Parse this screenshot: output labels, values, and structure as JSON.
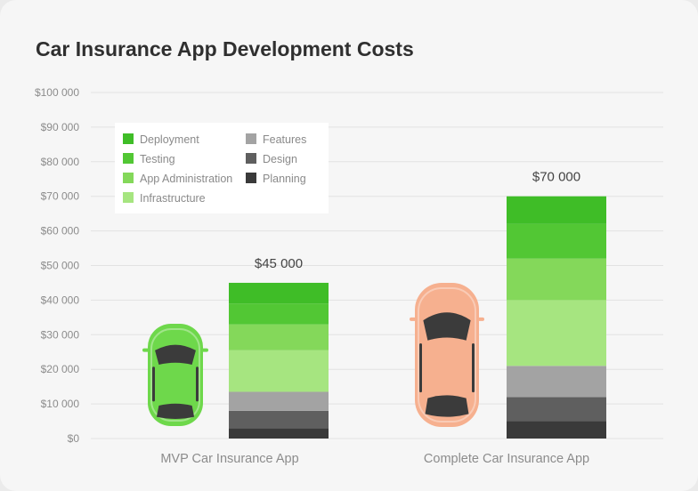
{
  "chart_data": {
    "type": "bar",
    "stacked": true,
    "title": "Car Insurance App Development Costs",
    "categories": [
      "MVP Car Insurance App",
      "Complete Car Insurance App"
    ],
    "totals": [
      "$45 000",
      "$70 000"
    ],
    "ylim": [
      0,
      100000
    ],
    "yticks": [
      0,
      10000,
      20000,
      30000,
      40000,
      50000,
      60000,
      70000,
      80000,
      90000,
      100000
    ],
    "ytick_labels": [
      "$0",
      "$10 000",
      "$20 000",
      "$30 000",
      "$40 000",
      "$50 000",
      "$60 000",
      "$70 000",
      "$80 000",
      "$90 000",
      "$100 000"
    ],
    "grid": true,
    "legend_position": "top-left",
    "series": [
      {
        "name": "Planning",
        "color": "#3a3a3a",
        "values": [
          3000,
          5000
        ]
      },
      {
        "name": "Design",
        "color": "#5f5f5f",
        "values": [
          5000,
          7000
        ]
      },
      {
        "name": "Features",
        "color": "#a3a3a3",
        "values": [
          5500,
          9000
        ]
      },
      {
        "name": "Infrastructure",
        "color": "#a6e580",
        "values": [
          12000,
          19000
        ]
      },
      {
        "name": "App Administration",
        "color": "#84d85a",
        "values": [
          7500,
          12000
        ]
      },
      {
        "name": "Testing",
        "color": "#52c734",
        "values": [
          6000,
          10000
        ]
      },
      {
        "name": "Deployment",
        "color": "#3fbd27",
        "values": [
          6000,
          8000
        ]
      }
    ],
    "legend_order": [
      "Deployment",
      "Testing",
      "App Administration",
      "Infrastructure",
      "Features",
      "Design",
      "Planning"
    ],
    "images": [
      {
        "name": "green-car",
        "color": "#6ed84b"
      },
      {
        "name": "orange-car",
        "color": "#f6b08f"
      }
    ]
  }
}
